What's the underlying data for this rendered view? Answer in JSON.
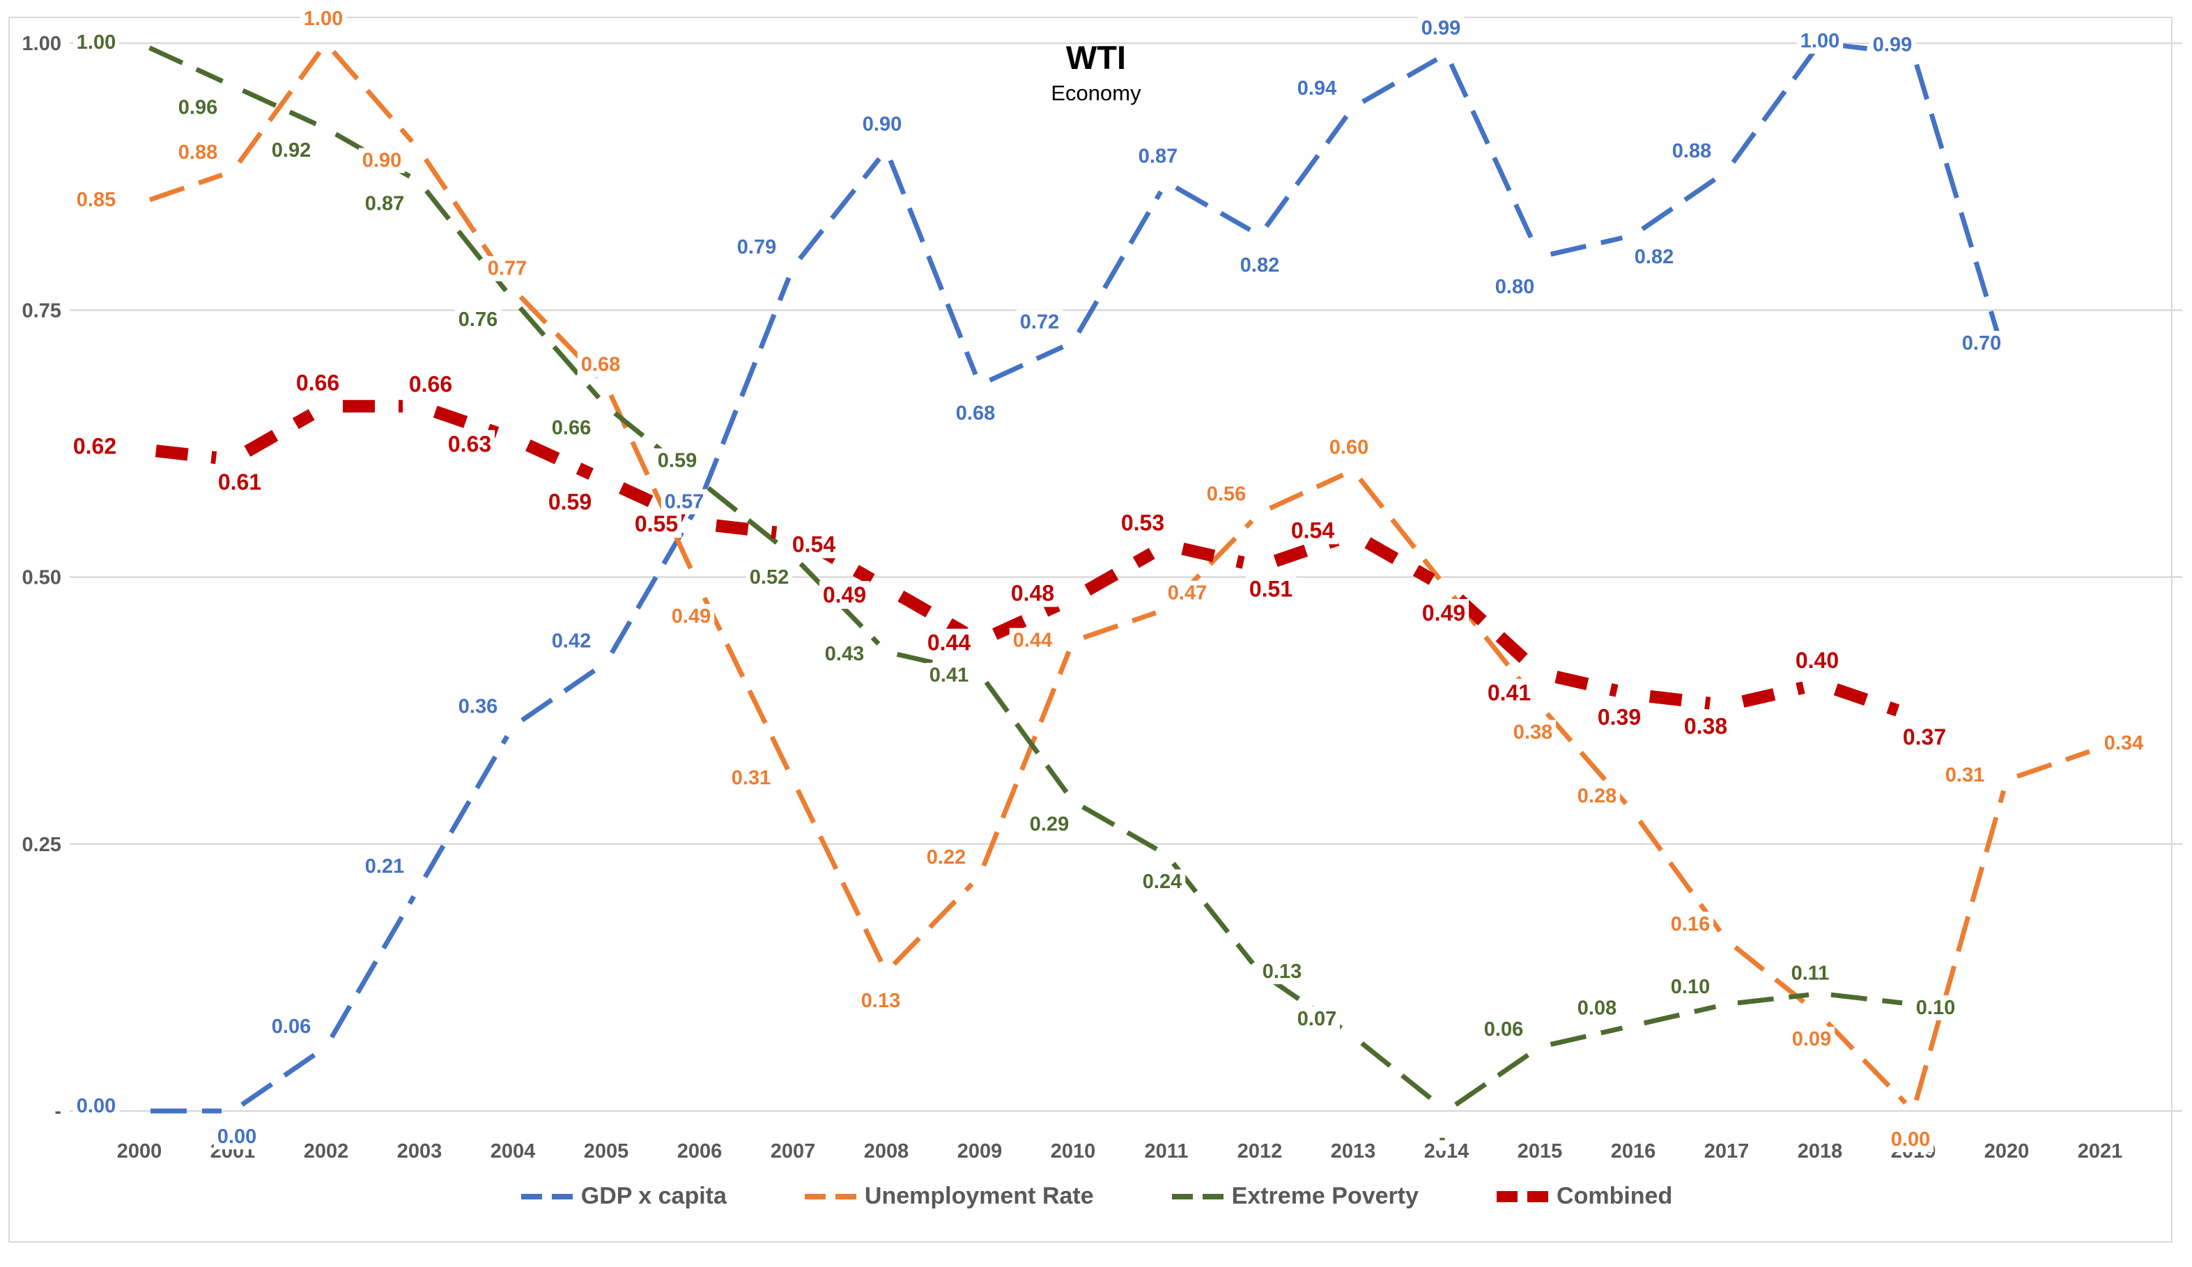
{
  "title": "WTI",
  "subtitle": "Economy",
  "colors": {
    "gdp": "#4472C4",
    "unemployment": "#ED7D31",
    "poverty": "#4D6B2E",
    "combined": "#C00000",
    "axis_text": "#595959",
    "gridline": "#D9D9D9",
    "label_background": "#FFFFFF"
  },
  "chart_data": {
    "type": "line",
    "title": "WTI",
    "subtitle": "Economy",
    "x": [
      "2000",
      "2001",
      "2002",
      "2003",
      "2004",
      "2005",
      "2006",
      "2007",
      "2008",
      "2009",
      "2010",
      "2011",
      "2012",
      "2013",
      "2014",
      "2015",
      "2016",
      "2017",
      "2018",
      "2019",
      "2020",
      "2021"
    ],
    "ylim": [
      0,
      1.0
    ],
    "yticks": [
      "1.00",
      "0.75",
      "0.50",
      "0.25",
      "-"
    ],
    "ytick_values": [
      1.0,
      0.75,
      0.5,
      0.25,
      0.0
    ],
    "grid": "horizontal",
    "legend_position": "bottom",
    "series": [
      {
        "name": "GDP x capita",
        "color_key": "gdp",
        "dash": "thin",
        "values": [
          0.0,
          0.0,
          0.06,
          0.21,
          0.36,
          0.42,
          0.57,
          0.79,
          0.9,
          0.68,
          0.72,
          0.87,
          0.82,
          0.94,
          0.99,
          0.8,
          0.82,
          0.88,
          1.0,
          0.99,
          0.7,
          null
        ],
        "labels": [
          "0.00",
          "0.00",
          "0.06",
          "0.21",
          "0.36",
          "0.42",
          "0.57",
          "0.79",
          "0.90",
          "0.68",
          "0.72",
          "0.87",
          "0.82",
          "0.94",
          "0.99",
          "0.80",
          "0.82",
          "0.88",
          "1.00",
          "0.99",
          "0.70",
          null
        ]
      },
      {
        "name": "Unemployment Rate",
        "color_key": "unemployment",
        "dash": "thin",
        "values": [
          0.85,
          0.88,
          1.0,
          0.9,
          0.77,
          0.68,
          0.49,
          0.31,
          0.13,
          0.22,
          0.44,
          0.47,
          0.56,
          0.6,
          0.49,
          0.38,
          0.28,
          0.16,
          0.09,
          0.0,
          0.31,
          0.34
        ],
        "labels": [
          "0.85",
          "0.88",
          "1.00",
          "0.90",
          "0.77",
          "0.68",
          "0.49",
          "0.31",
          "0.13",
          "0.22",
          "0.44",
          "0.47",
          "0.56",
          "0.60",
          null,
          "0.38",
          "0.28",
          "0.16",
          "0.09",
          "0.00",
          "0.31",
          "0.34"
        ]
      },
      {
        "name": "Extreme Poverty",
        "color_key": "poverty",
        "dash": "thin",
        "values": [
          1.0,
          0.96,
          0.92,
          0.87,
          0.76,
          0.66,
          0.59,
          0.52,
          0.43,
          0.41,
          0.29,
          0.24,
          0.13,
          0.07,
          0.0,
          0.06,
          0.08,
          0.1,
          0.11,
          0.1,
          null,
          null
        ],
        "labels": [
          "1.00",
          "0.96",
          "0.92",
          "0.87",
          "0.76",
          "0.66",
          "0.59",
          "0.52",
          "0.43",
          "0.41",
          "0.29",
          "0.24",
          "0.13",
          "0.07",
          "-",
          "0.06",
          "0.08",
          "0.10",
          "0.11",
          "0.10",
          null,
          null
        ]
      },
      {
        "name": "Combined",
        "color_key": "combined",
        "dash": "thick",
        "values": [
          0.62,
          0.61,
          0.66,
          0.66,
          0.63,
          0.59,
          0.55,
          0.54,
          0.49,
          0.44,
          0.48,
          0.53,
          0.51,
          0.54,
          0.49,
          0.41,
          0.39,
          0.38,
          0.4,
          0.37,
          null,
          null
        ],
        "labels": [
          "0.62",
          "0.61",
          "0.66",
          "0.66",
          "0.63",
          "0.59",
          "0.55",
          "0.54",
          "0.49",
          "0.44",
          "0.48",
          "0.53",
          "0.51",
          "0.54",
          "0.49",
          "0.41",
          "0.39",
          "0.38",
          "0.40",
          "0.37",
          null,
          null
        ]
      }
    ]
  }
}
